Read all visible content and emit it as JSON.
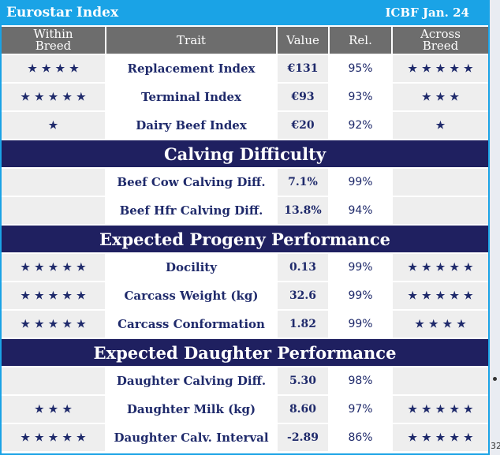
{
  "header": {
    "title": "Eurostar Index",
    "source": "ICBF Jan. 24"
  },
  "columns": [
    "Within Breed",
    "Trait",
    "Value",
    "Rel.",
    "Across Breed"
  ],
  "colors": {
    "accent": "#1aa3e6",
    "navy": "#1f2060",
    "text": "#1f2a6b",
    "header_grey": "#6d6d6d"
  },
  "groups": [
    {
      "section": "",
      "rows": [
        {
          "within": "★★★★",
          "trait": "Replacement Index",
          "value": "€131",
          "rel": "95%",
          "across": "★★★★★"
        },
        {
          "within": "★★★★★",
          "trait": "Terminal Index",
          "value": "€93",
          "rel": "93%",
          "across": "★★★"
        },
        {
          "within": "★",
          "trait": "Dairy Beef Index",
          "value": "€20",
          "rel": "92%",
          "across": "★"
        }
      ]
    },
    {
      "section": "Calving Difficulty",
      "rows": [
        {
          "within": "",
          "trait": "Beef Cow Calving Diff.",
          "value": "7.1%",
          "rel": "99%",
          "across": ""
        },
        {
          "within": "",
          "trait": "Beef Hfr Calving Diff.",
          "value": "13.8%",
          "rel": "94%",
          "across": ""
        }
      ]
    },
    {
      "section": "Expected Progeny Performance",
      "rows": [
        {
          "within": "★★★★★",
          "trait": "Docility",
          "value": "0.13",
          "rel": "99%",
          "across": "★★★★★"
        },
        {
          "within": "★★★★★",
          "trait": "Carcass Weight (kg)",
          "value": "32.6",
          "rel": "99%",
          "across": "★★★★★"
        },
        {
          "within": "★★★★★",
          "trait": "Carcass Conformation",
          "value": "1.82",
          "rel": "99%",
          "across": "★★★★"
        }
      ]
    },
    {
      "section": "Expected Daughter Performance",
      "rows": [
        {
          "within": "",
          "trait": "Daughter Calving Diff.",
          "value": "5.30",
          "rel": "98%",
          "across": ""
        },
        {
          "within": "★★★",
          "trait": "Daughter Milk (kg)",
          "value": "8.60",
          "rel": "97%",
          "across": "★★★★★"
        },
        {
          "within": "★★★★★",
          "trait": "Daughter Calv. Interval",
          "value": "-2.89",
          "rel": "86%",
          "across": "★★★★★"
        }
      ]
    }
  ],
  "edge_text": "32"
}
